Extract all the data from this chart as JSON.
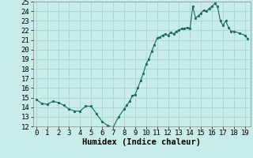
{
  "x": [
    0,
    0.5,
    1,
    1.5,
    2,
    2.5,
    3,
    3.5,
    4,
    4.5,
    5,
    5.5,
    6,
    6.5,
    7,
    7.5,
    8,
    8.25,
    8.5,
    8.75,
    9,
    9.25,
    9.5,
    9.75,
    10,
    10.25,
    10.5,
    10.75,
    11,
    11.25,
    11.5,
    11.75,
    12,
    12.25,
    12.5,
    12.75,
    13,
    13.25,
    13.5,
    13.75,
    14,
    14.25,
    14.5,
    14.75,
    15,
    15.25,
    15.5,
    15.75,
    16,
    16.25,
    16.5,
    16.75,
    17,
    17.25,
    17.5,
    17.75,
    18,
    18.5,
    19,
    19.25
  ],
  "y": [
    14.8,
    14.4,
    14.3,
    14.6,
    14.5,
    14.2,
    13.8,
    13.6,
    13.6,
    14.1,
    14.1,
    13.3,
    12.5,
    12.1,
    11.9,
    13.0,
    13.8,
    14.2,
    14.6,
    15.2,
    15.3,
    16.0,
    16.8,
    17.5,
    18.5,
    19.0,
    19.8,
    20.5,
    21.2,
    21.3,
    21.5,
    21.6,
    21.5,
    21.8,
    21.6,
    21.9,
    22.0,
    22.2,
    22.2,
    22.3,
    22.2,
    24.5,
    23.3,
    23.5,
    23.8,
    24.1,
    24.0,
    24.3,
    24.5,
    24.8,
    24.5,
    23.0,
    22.5,
    23.0,
    22.3,
    21.9,
    21.9,
    21.7,
    21.5,
    21.1
  ],
  "line_color": "#1a6b5a",
  "marker_color": "#1a6b5a",
  "bg_color": "#c8ece8",
  "grid_color": "#a8d4d0",
  "xlabel": "Humidex (Indice chaleur)",
  "xlim": [
    -0.3,
    19.5
  ],
  "ylim": [
    12,
    25
  ],
  "xticks": [
    0,
    1,
    2,
    3,
    4,
    5,
    6,
    7,
    8,
    9,
    10,
    11,
    12,
    13,
    14,
    15,
    16,
    17,
    18,
    19
  ],
  "yticks": [
    12,
    13,
    14,
    15,
    16,
    17,
    18,
    19,
    20,
    21,
    22,
    23,
    24,
    25
  ],
  "xlabel_fontsize": 7.5,
  "tick_fontsize": 6.5
}
